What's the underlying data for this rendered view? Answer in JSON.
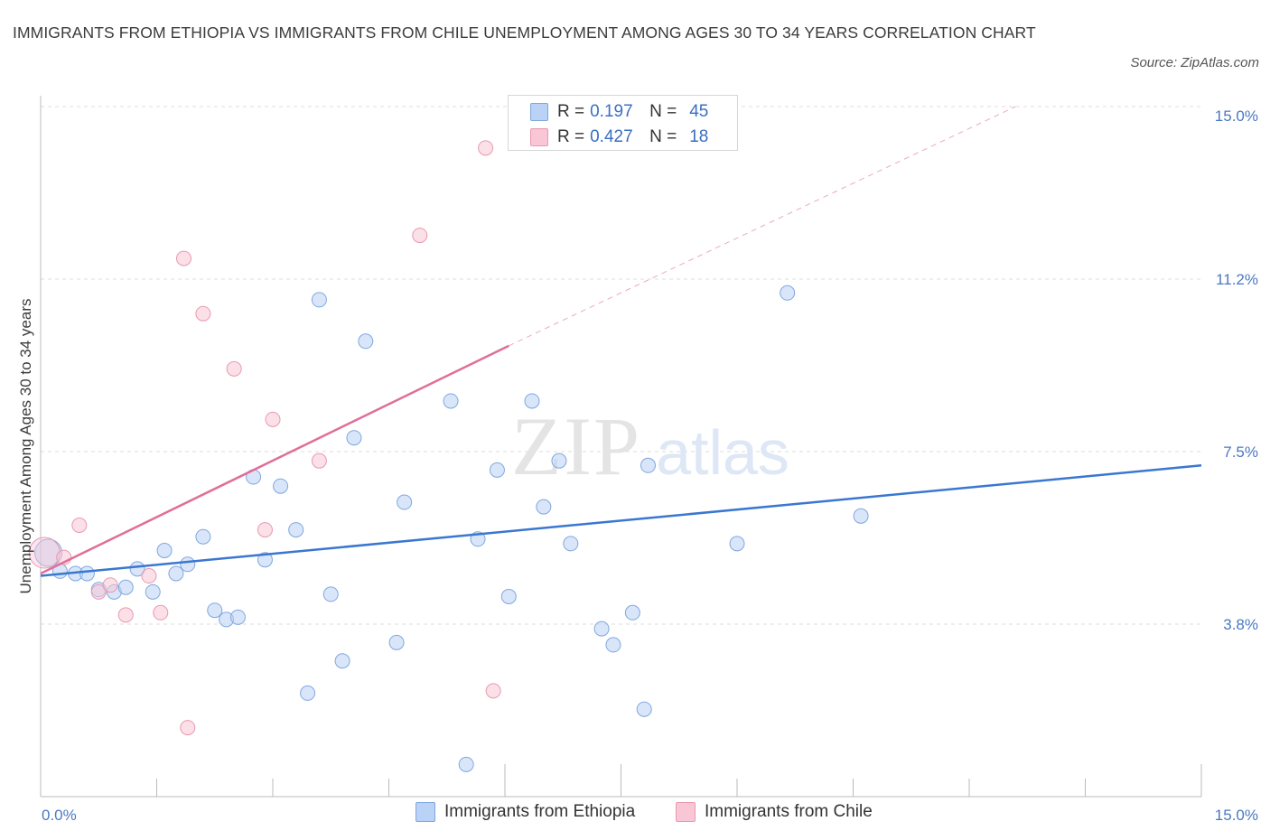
{
  "title": "IMMIGRANTS FROM ETHIOPIA VS IMMIGRANTS FROM CHILE UNEMPLOYMENT AMONG AGES 30 TO 34 YEARS CORRELATION CHART",
  "source": "Source: ZipAtlas.com",
  "watermark": {
    "zip": "ZIP",
    "atlas": "atlas"
  },
  "legend": {
    "rows": [
      {
        "r_label": "R =",
        "r_value": "0.197",
        "n_label": "N =",
        "n_value": "45",
        "fill": "#b9d2f5",
        "stroke": "#7fa7de"
      },
      {
        "r_label": "R =",
        "r_value": "0.427",
        "n_label": "N =",
        "n_value": "18",
        "fill": "#f8c6d5",
        "stroke": "#e899b2"
      }
    ]
  },
  "bottom_legend": {
    "ethiopia": "Immigrants from Ethiopia",
    "chile": "Immigrants from Chile"
  },
  "colors": {
    "ethiopia_fill": "#b9d2f5",
    "ethiopia_stroke": "#7fa7de",
    "ethiopia_line": "#3a77d0",
    "chile_fill": "#f8c6d5",
    "chile_stroke": "#e899b2",
    "chile_line": "#e06e98",
    "grid": "#dddddd",
    "tick_text": "#4a78c2"
  },
  "chart_data": {
    "type": "scatter",
    "title": "IMMIGRANTS FROM ETHIOPIA VS IMMIGRANTS FROM CHILE UNEMPLOYMENT AMONG AGES 30 TO 34 YEARS CORRELATION CHART",
    "ylabel": "Unemployment Among Ages 30 to 34 years",
    "xlabel": "",
    "xlim": [
      0,
      15
    ],
    "ylim": [
      0,
      15
    ],
    "x_tick_labels": [
      {
        "value": 0,
        "label": "0.0%"
      },
      {
        "value": 15,
        "label": "15.0%"
      }
    ],
    "y_tick_labels": [
      {
        "value": 3.75,
        "label": "3.8%"
      },
      {
        "value": 7.5,
        "label": "7.5%"
      },
      {
        "value": 11.25,
        "label": "11.2%"
      },
      {
        "value": 15,
        "label": "15.0%"
      }
    ],
    "series": [
      {
        "name": "Immigrants from Ethiopia",
        "r": 0.197,
        "n": 45,
        "trend": {
          "x": [
            0,
            15
          ],
          "y": [
            4.8,
            7.2
          ]
        },
        "points": [
          [
            0.1,
            5.3
          ],
          [
            0.25,
            4.9
          ],
          [
            0.45,
            4.85
          ],
          [
            0.6,
            4.85
          ],
          [
            0.75,
            4.5
          ],
          [
            0.95,
            4.45
          ],
          [
            1.1,
            4.55
          ],
          [
            1.25,
            4.95
          ],
          [
            1.45,
            4.45
          ],
          [
            1.6,
            5.35
          ],
          [
            1.75,
            4.85
          ],
          [
            1.9,
            5.05
          ],
          [
            2.1,
            5.65
          ],
          [
            2.25,
            4.05
          ],
          [
            2.4,
            3.85
          ],
          [
            2.55,
            3.9
          ],
          [
            2.75,
            6.95
          ],
          [
            2.9,
            5.15
          ],
          [
            3.1,
            6.75
          ],
          [
            3.3,
            5.8
          ],
          [
            3.45,
            2.25
          ],
          [
            3.6,
            10.8
          ],
          [
            3.75,
            4.4
          ],
          [
            3.9,
            2.95
          ],
          [
            4.2,
            9.9
          ],
          [
            4.05,
            7.8
          ],
          [
            4.6,
            3.35
          ],
          [
            4.7,
            6.4
          ],
          [
            5.3,
            8.6
          ],
          [
            5.5,
            0.7
          ],
          [
            5.65,
            5.6
          ],
          [
            5.9,
            7.1
          ],
          [
            6.05,
            4.35
          ],
          [
            6.35,
            8.6
          ],
          [
            6.5,
            6.3
          ],
          [
            6.7,
            7.3
          ],
          [
            6.85,
            5.5
          ],
          [
            7.25,
            3.65
          ],
          [
            7.4,
            3.3
          ],
          [
            7.65,
            4.0
          ],
          [
            7.8,
            1.9
          ],
          [
            7.85,
            7.2
          ],
          [
            9.0,
            5.5
          ],
          [
            9.65,
            10.95
          ],
          [
            10.6,
            6.1
          ]
        ]
      },
      {
        "name": "Immigrants from Chile",
        "r": 0.427,
        "n": 18,
        "trend": {
          "x": [
            0,
            6.05
          ],
          "y": [
            4.85,
            9.8
          ]
        },
        "trend_extension": {
          "x": [
            6.05,
            12.6
          ],
          "y": [
            9.8,
            15.0
          ]
        },
        "points": [
          [
            0.05,
            5.3
          ],
          [
            0.3,
            5.2
          ],
          [
            0.5,
            5.9
          ],
          [
            0.75,
            4.45
          ],
          [
            0.9,
            4.6
          ],
          [
            1.1,
            3.95
          ],
          [
            1.4,
            4.8
          ],
          [
            1.55,
            4.0
          ],
          [
            1.85,
            11.7
          ],
          [
            1.9,
            1.5
          ],
          [
            2.1,
            10.5
          ],
          [
            2.5,
            9.3
          ],
          [
            2.9,
            5.8
          ],
          [
            3.0,
            8.2
          ],
          [
            3.6,
            7.3
          ],
          [
            4.9,
            12.2
          ],
          [
            5.85,
            2.3
          ],
          [
            5.75,
            14.1
          ]
        ]
      }
    ]
  }
}
